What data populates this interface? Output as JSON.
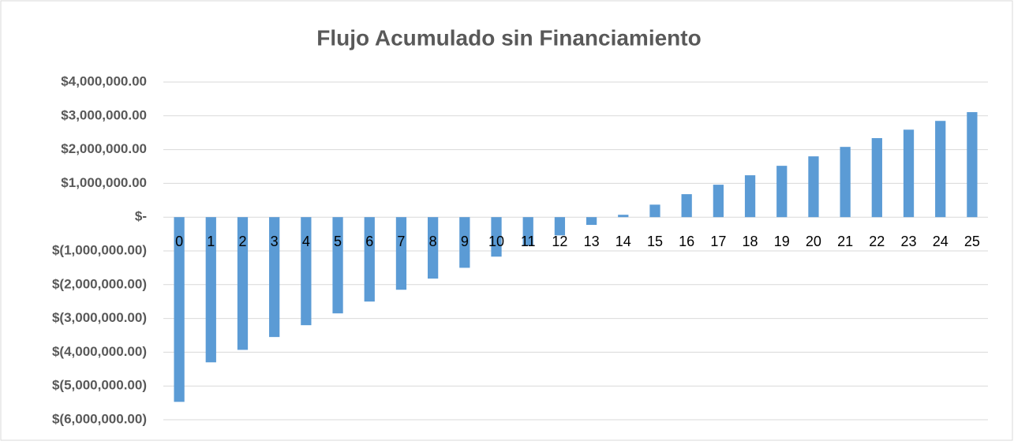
{
  "chart_data": {
    "type": "bar",
    "title": "Flujo Acumulado sin Financiamiento",
    "categories": [
      "0",
      "1",
      "2",
      "3",
      "4",
      "5",
      "6",
      "7",
      "8",
      "9",
      "10",
      "11",
      "12",
      "13",
      "14",
      "15",
      "16",
      "17",
      "18",
      "19",
      "20",
      "21",
      "22",
      "23",
      "24",
      "25"
    ],
    "values": [
      -5470000,
      -4300000,
      -3930000,
      -3550000,
      -3200000,
      -2850000,
      -2500000,
      -2150000,
      -1820000,
      -1500000,
      -1170000,
      -840000,
      -540000,
      -230000,
      70000,
      370000,
      680000,
      960000,
      1240000,
      1520000,
      1800000,
      2080000,
      2340000,
      2590000,
      2850000,
      3110000
    ],
    "color": "#5b9bd5",
    "ylim": [
      -6000000,
      4000000
    ],
    "yticks": [
      {
        "value": -6000000,
        "label": "$(6,000,000.00)"
      },
      {
        "value": -5000000,
        "label": "$(5,000,000.00)"
      },
      {
        "value": -4000000,
        "label": "$(4,000,000.00)"
      },
      {
        "value": -3000000,
        "label": "$(3,000,000.00)"
      },
      {
        "value": -2000000,
        "label": "$(2,000,000.00)"
      },
      {
        "value": -1000000,
        "label": "$(1,000,000.00)"
      },
      {
        "value": 0,
        "label": "$-"
      },
      {
        "value": 1000000,
        "label": "$1,000,000.00"
      },
      {
        "value": 2000000,
        "label": "$2,000,000.00"
      },
      {
        "value": 3000000,
        "label": "$3,000,000.00"
      },
      {
        "value": 4000000,
        "label": "$4,000,000.00"
      }
    ],
    "grid": true
  }
}
